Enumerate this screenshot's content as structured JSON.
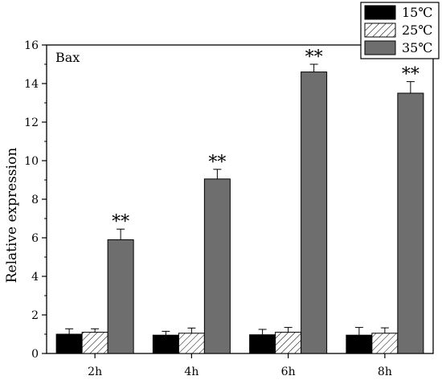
{
  "chart_data": {
    "type": "bar",
    "title": "",
    "panel_label": "Bax",
    "xlabel": "",
    "ylabel": "Relative expression",
    "categories": [
      "2h",
      "4h",
      "6h",
      "8h"
    ],
    "ylim": [
      0,
      16
    ],
    "yticks": [
      0,
      2,
      4,
      6,
      8,
      10,
      12,
      14,
      16
    ],
    "legend_position": "top-right",
    "series": [
      {
        "name": "15℃",
        "values": [
          1.0,
          0.95,
          0.97,
          0.95
        ],
        "errors": [
          0.28,
          0.2,
          0.28,
          0.4
        ],
        "fill": "#000000",
        "pattern": "solid"
      },
      {
        "name": "25℃",
        "values": [
          1.1,
          1.05,
          1.1,
          1.05
        ],
        "errors": [
          0.18,
          0.27,
          0.25,
          0.28
        ],
        "fill": "#ffffff",
        "pattern": "hatch"
      },
      {
        "name": "35℃",
        "values": [
          5.9,
          9.05,
          14.6,
          13.5
        ],
        "errors": [
          0.55,
          0.5,
          0.4,
          0.6
        ],
        "fill": "#6e6e6e",
        "pattern": "solid",
        "annotations": [
          "**",
          "**",
          "**",
          "**"
        ]
      }
    ]
  }
}
